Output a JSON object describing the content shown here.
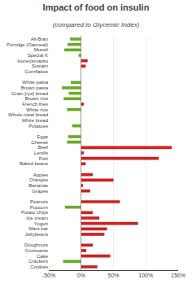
{
  "chart_data": {
    "type": "bar",
    "orientation": "horizontal",
    "title": "Impact of food on insulin",
    "subtitle": "(compared to Glycemic Index)",
    "categories": [
      "All-Bran",
      "Porridge (Oatmeal)",
      "Muesli",
      "Special K",
      "Honeysmacks",
      "Sustain",
      "Cornflakes",
      null,
      "White pasta",
      "Brown pasta",
      "Grain [rye] bread",
      "Brown rice",
      "French fries",
      "White rice",
      "Whole-meal bread",
      "White bread",
      "Potatoes",
      null,
      "Eggs",
      "Cheese",
      "Beef",
      "Lentils",
      "Fish",
      "Baked beans",
      null,
      "Apples",
      "Oranges",
      "Bananas",
      "Grapes",
      null,
      "Peanuts",
      "Popcorn",
      "Potato chips",
      "Ice cream",
      "Yogurt",
      "Mars bar",
      "Jellybeans",
      null,
      "Doughnuts",
      "Croissants",
      "Cake",
      "Crackers",
      "Cookies"
    ],
    "values": [
      -17,
      -21,
      -26,
      -4,
      10,
      7,
      0,
      0,
      -16,
      -30,
      -19,
      -27,
      4,
      -22,
      0,
      0,
      -14,
      0,
      -20,
      -22,
      140,
      4,
      120,
      7,
      0,
      18,
      50,
      3,
      14,
      0,
      60,
      -25,
      18,
      28,
      88,
      40,
      36,
      0,
      18,
      8,
      45,
      -28,
      25
    ],
    "colors": [
      "#6aaa2a",
      "#6aaa2a",
      "#6aaa2a",
      "#6aaa2a",
      "#cc2222",
      "#cc2222",
      "none",
      "none",
      "#6aaa2a",
      "#6aaa2a",
      "#6aaa2a",
      "#6aaa2a",
      "#cc2222",
      "#6aaa2a",
      "none",
      "none",
      "#6aaa2a",
      "none",
      "#6aaa2a",
      "#6aaa2a",
      "#cc2222",
      "#cc2222",
      "#cc2222",
      "#cc2222",
      "none",
      "#cc2222",
      "#cc2222",
      "#cc2222",
      "#cc2222",
      "none",
      "#cc2222",
      "#6aaa2a",
      "#cc2222",
      "#cc2222",
      "#cc2222",
      "#cc2222",
      "#cc2222",
      "none",
      "#cc2222",
      "#cc2222",
      "#cc2222",
      "#6aaa2a",
      "#cc2222"
    ],
    "xlim": [
      -50,
      150
    ],
    "xticks": [
      {
        "value": -50,
        "label": "-50%"
      },
      {
        "value": 0,
        "label": "0%"
      },
      {
        "value": 50,
        "label": "50%"
      },
      {
        "value": 100,
        "label": "100%"
      },
      {
        "value": 150,
        "label": "150%"
      }
    ],
    "grid": true
  }
}
